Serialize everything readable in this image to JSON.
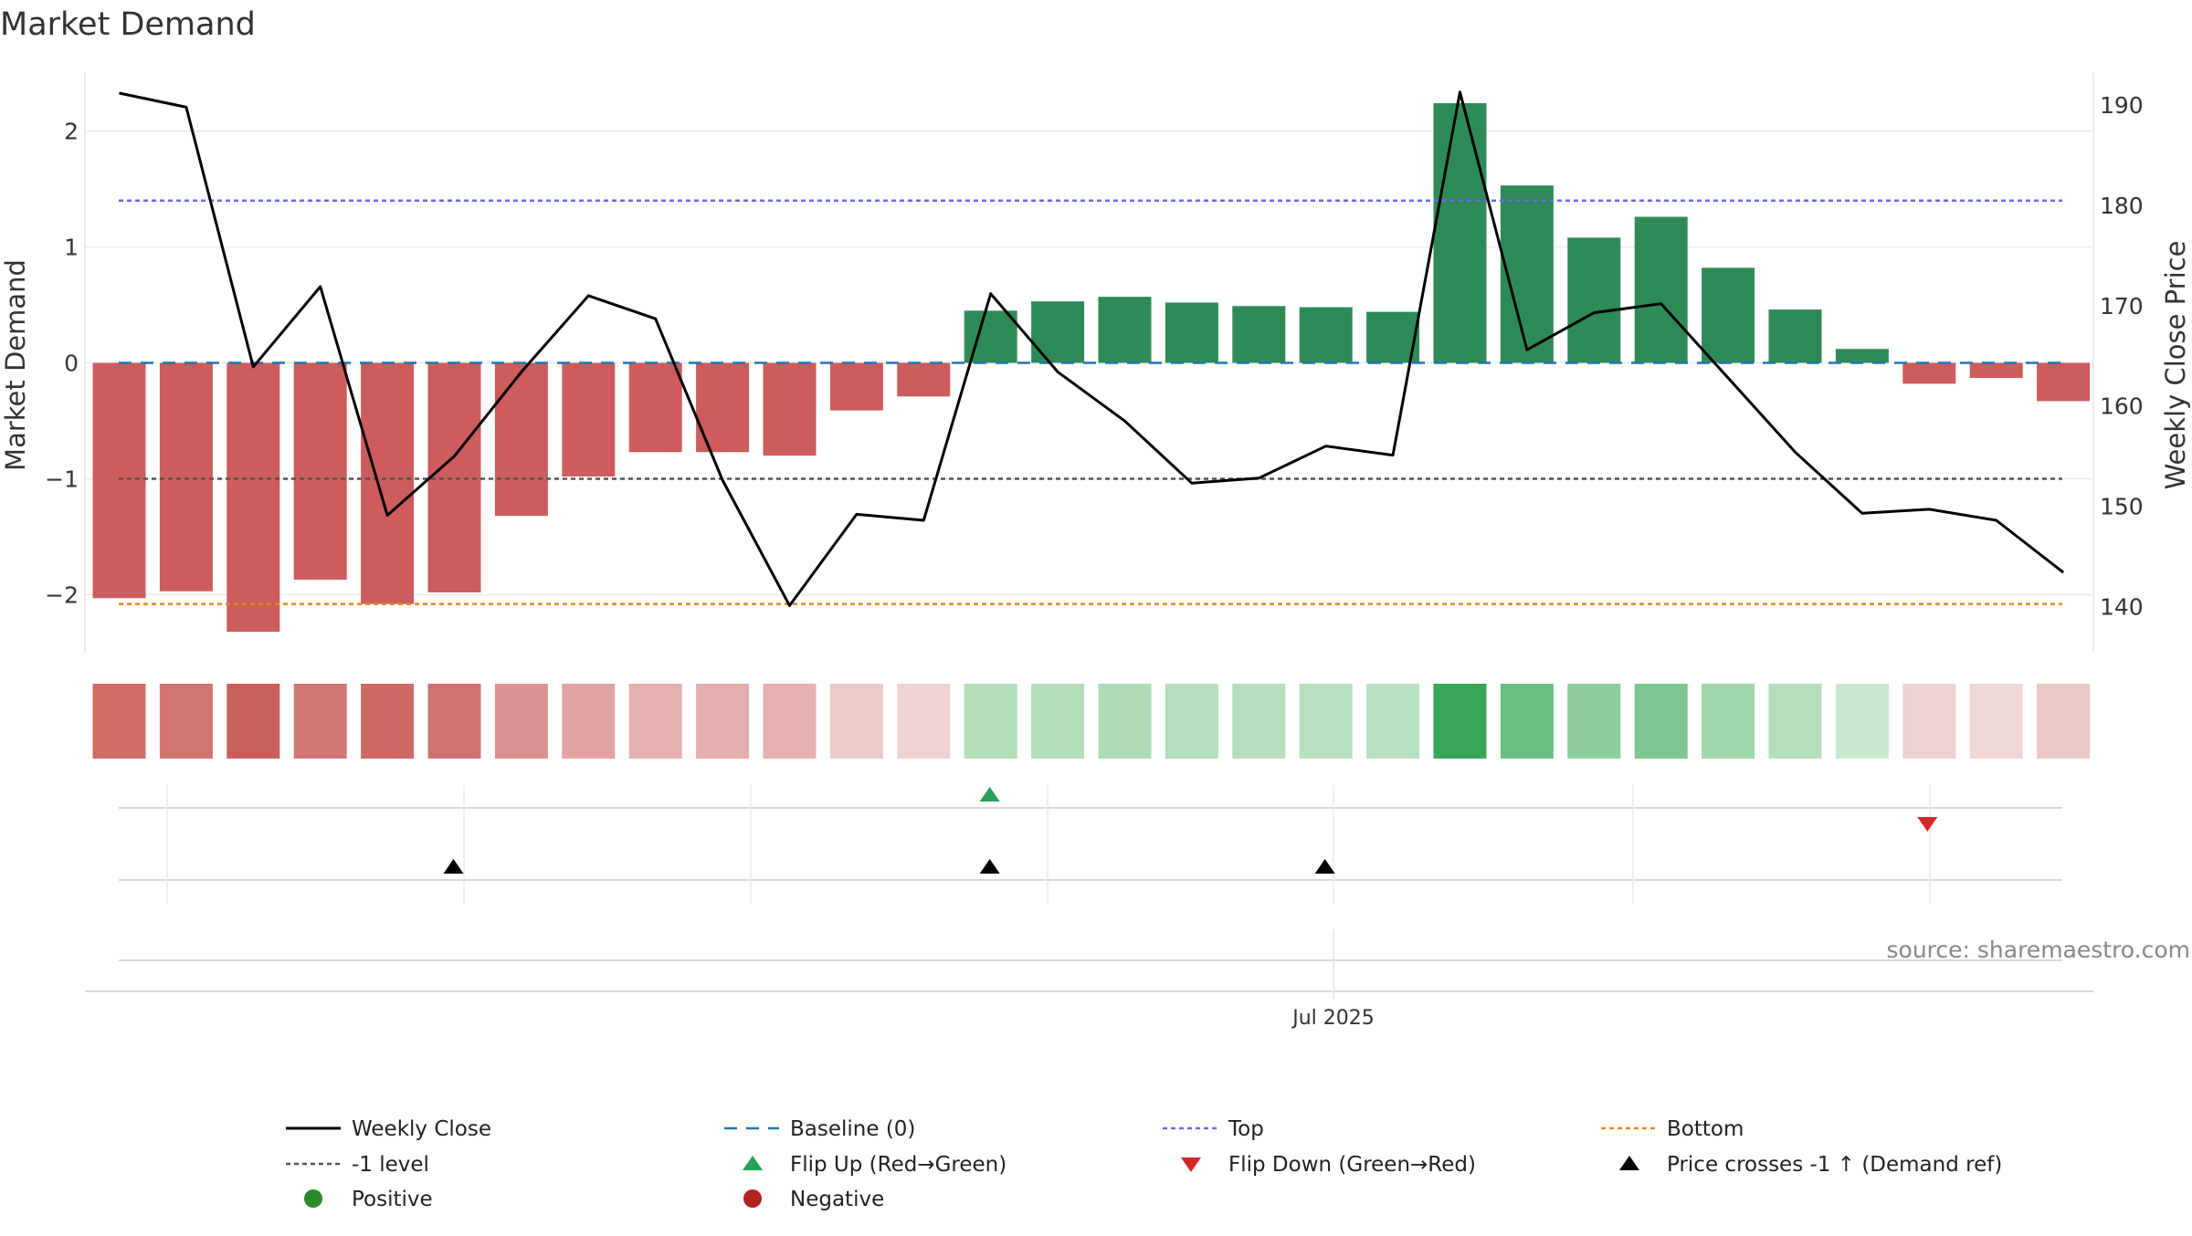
{
  "chart_data": {
    "type": "bar",
    "title": "Market Demand",
    "ylabel": "Market Demand",
    "y2label": "Weekly Close Price",
    "x_tick_label": "Jul 2025",
    "source": "source: sharemaestro.com",
    "ylim": [
      -2.5,
      2.5
    ],
    "y2lim": [
      135.4,
      193.2
    ],
    "yticks": [
      2,
      1,
      0,
      -1,
      -2
    ],
    "ytick_labels": [
      "2",
      "1",
      "0",
      "−1",
      "−2"
    ],
    "y2ticks": [
      190,
      180,
      170,
      160,
      150,
      140
    ],
    "y2tick_labels": [
      "190",
      "180",
      "170",
      "160",
      "150",
      "140"
    ],
    "demand": [
      -2.03,
      -1.97,
      -2.32,
      -1.87,
      -2.08,
      -1.98,
      -1.32,
      -0.98,
      -0.77,
      -0.77,
      -0.8,
      -0.41,
      -0.29,
      0.45,
      0.53,
      0.57,
      0.52,
      0.49,
      0.48,
      0.44,
      2.24,
      1.53,
      1.08,
      1.26,
      0.82,
      0.46,
      0.12,
      -0.18,
      -0.13,
      -0.33
    ],
    "close": [
      191.2,
      189.8,
      163.9,
      171.9,
      149.1,
      155.0,
      163.4,
      171.0,
      168.7,
      152.6,
      140.1,
      149.2,
      148.6,
      171.2,
      163.4,
      158.5,
      152.3,
      152.8,
      156.0,
      155.1,
      191.3,
      165.6,
      169.3,
      170.2,
      162.8,
      155.4,
      149.3,
      149.7,
      148.6,
      143.4
    ],
    "levels": {
      "baseline": 0,
      "top": 1.4,
      "bottom": -2.08,
      "minus_one": -1
    },
    "flip_up_index": [
      13
    ],
    "flip_down_index": [
      27
    ],
    "price_cross_index": [
      5,
      13,
      18
    ],
    "heat_colors": [
      "#cd6d64",
      "#d0756d",
      "#c9605a",
      "#d27874",
      "#cd6a63",
      "#cf726e",
      "#db9391",
      "#e0a3a2",
      "#e3b1b0",
      "#e2afae",
      "#e3b1b0",
      "#eccbca",
      "#efd3d3",
      "#b2dfba",
      "#b2dfba",
      "#addcb6",
      "#b4dfbc",
      "#b5dfbd",
      "#b6e0be",
      "#b8e1c0",
      "#3aa757",
      "#6cbf82",
      "#8ccd9b",
      "#7fc690",
      "#a1d7ab",
      "#b3dfbb",
      "#c9e9cf",
      "#f0d2d2",
      "#f1d6d6",
      "#ecc8c7"
    ],
    "colors": {
      "positive": "#2e8b57",
      "negative": "#cd5c5c",
      "close_line": "#000000",
      "baseline": "#1f77b4",
      "top": "#6a6adf",
      "bottom": "#e08a1a",
      "minus_one": "#555555",
      "flip_up": "#27a05a",
      "flip_down": "#d62728",
      "cross": "#000000",
      "legend_positive": "#2a8a2a",
      "legend_negative": "#b22222"
    }
  },
  "legend": [
    {
      "label": "Weekly Close",
      "symbol": "line-solid"
    },
    {
      "label": "Baseline (0)",
      "symbol": "line-dashed"
    },
    {
      "label": "Top",
      "symbol": "line-dotted-top"
    },
    {
      "label": "Bottom",
      "symbol": "line-dotted-bottom"
    },
    {
      "label": "-1 level",
      "symbol": "line-dotted-minus-one"
    },
    {
      "label": "Flip Up (Red→Green)",
      "symbol": "triangle-up-green"
    },
    {
      "label": "Flip Down (Green→Red)",
      "symbol": "triangle-down-red"
    },
    {
      "label": "Price crosses -1 ↑ (Demand ref)",
      "symbol": "triangle-up-black"
    },
    {
      "label": "Positive",
      "symbol": "dot-green"
    },
    {
      "label": "Negative",
      "symbol": "dot-red"
    }
  ]
}
